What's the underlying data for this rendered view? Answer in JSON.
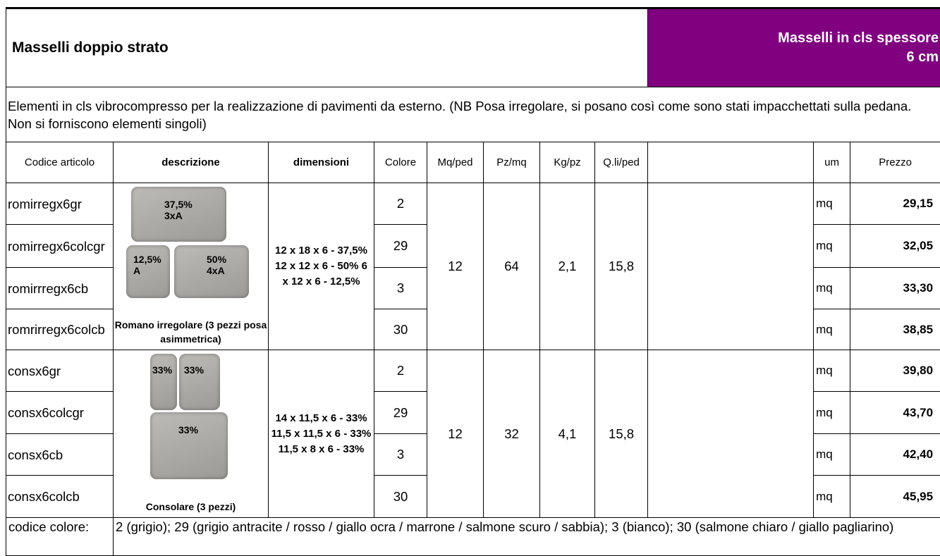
{
  "header": {
    "title": "Masselli doppio strato",
    "badge": [
      "Masselli in cls spessore",
      "6 cm"
    ]
  },
  "description": "Elementi in cls vibrocompresso per la realizzazione di pavimenti da esterno. (NB Posa irregolare, si posano così come sono stati impacchettati sulla pedana. Non si forniscono elementi singoli)",
  "columns": [
    "Codice articolo",
    "descrizione",
    "dimensioni",
    "Colore",
    "Mq/ped",
    "Pz/mq",
    "Kg/pz",
    "Q.li/ped",
    "um",
    "Prezzo"
  ],
  "groups": [
    {
      "image_labels": [
        [
          "37,5%",
          "3xA"
        ],
        [
          "12,5%",
          "A"
        ],
        [
          "50%",
          "4xA"
        ]
      ],
      "caption": "Romano irregolare (3 pezzi posa asimmetrica)",
      "dimensions": "12 x 18 x 6 - 37,5% 12 x 12 x 6 - 50% 6 x 12 x 6 - 12,5%",
      "mq_ped": "12",
      "pz_mq": "64",
      "kg_pz": "2,1",
      "qli_ped": "15,8",
      "rows": [
        {
          "code": "romirregx6gr",
          "color": "2",
          "um": "mq",
          "price": "29,15"
        },
        {
          "code": "romirregx6colcgr",
          "color": "29",
          "um": "mq",
          "price": "32,05"
        },
        {
          "code": "romirrregx6cb",
          "color": "3",
          "um": "mq",
          "price": "33,30"
        },
        {
          "code": "romrirregx6colcb",
          "color": "30",
          "um": "mq",
          "price": "38,85"
        }
      ]
    },
    {
      "image_labels": [
        [
          "33%"
        ],
        [
          "33%"
        ],
        [
          "33%"
        ]
      ],
      "caption": "Consolare (3 pezzi)",
      "dimensions": "14 x 11,5 x 6 - 33% 11,5 x 11,5 x 6 - 33% 11,5 x 8 x 6 - 33%",
      "mq_ped": "12",
      "pz_mq": "32",
      "kg_pz": "4,1",
      "qli_ped": "15,8",
      "rows": [
        {
          "code": "consx6gr",
          "color": "2",
          "um": "mq",
          "price": "39,80"
        },
        {
          "code": "consx6colcgr",
          "color": "29",
          "um": "mq",
          "price": "43,70"
        },
        {
          "code": "consx6cb",
          "color": "3",
          "um": "mq",
          "price": "42,40"
        },
        {
          "code": "consx6colcb",
          "color": "30",
          "um": "mq",
          "price": "45,95"
        }
      ]
    }
  ],
  "footer": {
    "label": "codice colore:",
    "text": "2 (grigio); 29 (grigio antracite / rosso / giallo ocra / marrone / salmone scuro / sabbia); 3 (bianco); 30 (salmone chiaro / giallo pagliarino)"
  }
}
